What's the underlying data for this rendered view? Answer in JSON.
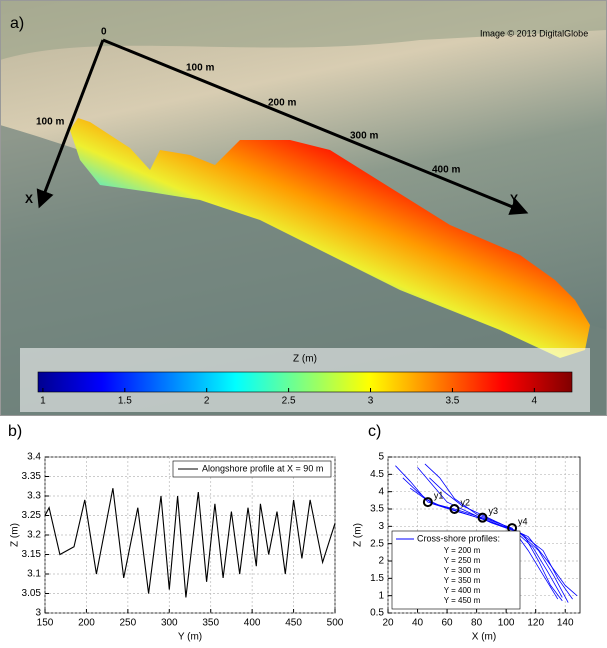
{
  "panel_a": {
    "label": "a)",
    "credit": "Image © 2013 DigitalGlobe",
    "origin": "0",
    "x_axis": "X",
    "y_axis": "Y",
    "x_marks": [
      "100 m"
    ],
    "y_marks": [
      "100 m",
      "200 m",
      "300 m",
      "400 m"
    ],
    "colorbar": {
      "title": "Z (m)",
      "lim": [
        0.97,
        4.23
      ],
      "ticks": [
        1,
        1.5,
        2,
        2.5,
        3,
        3.5,
        4
      ]
    }
  },
  "chart_data": [
    {
      "type": "line",
      "label": "b)",
      "x_label": "Y (m)",
      "y_label": "Z (m)",
      "x": [
        150,
        155,
        168,
        185,
        198,
        212,
        232,
        245,
        262,
        275,
        290,
        300,
        310,
        320,
        335,
        345,
        355,
        365,
        375,
        385,
        395,
        405,
        410,
        420,
        430,
        440,
        450,
        460,
        470,
        485,
        500
      ],
      "series": [
        {
          "name": "Alongshore profile at X = 90 m",
          "color": "#000000",
          "values": [
            3.25,
            3.27,
            3.15,
            3.17,
            3.29,
            3.1,
            3.32,
            3.09,
            3.27,
            3.05,
            3.3,
            3.06,
            3.3,
            3.04,
            3.31,
            3.08,
            3.28,
            3.09,
            3.26,
            3.1,
            3.27,
            3.12,
            3.28,
            3.15,
            3.26,
            3.1,
            3.29,
            3.14,
            3.29,
            3.13,
            3.23
          ]
        }
      ],
      "xlim": [
        150,
        500
      ],
      "xticks": [
        150,
        200,
        250,
        300,
        350,
        400,
        450,
        500
      ],
      "ylim": [
        3,
        3.4
      ],
      "yticks": [
        3,
        3.05,
        3.1,
        3.15,
        3.2,
        3.25,
        3.3,
        3.35,
        3.4
      ],
      "grid": true,
      "legend": "upper-right"
    },
    {
      "type": "line",
      "label": "c)",
      "x_label": "X (m)",
      "y_label": "Z (m)",
      "legend_title": "Cross-shore profiles:",
      "series": [
        {
          "name": "Y = 200 m",
          "color": "#0000ff",
          "x": [
            25,
            35,
            47,
            65,
            84,
            104,
            115,
            125,
            135
          ],
          "values": [
            4.75,
            4.3,
            3.7,
            3.5,
            3.25,
            2.95,
            2.3,
            1.6,
            0.9
          ]
        },
        {
          "name": "Y = 250 m",
          "color": "#0000ff",
          "x": [
            30,
            40,
            50,
            65,
            85,
            105,
            118,
            128,
            138
          ],
          "values": [
            4.4,
            4.0,
            3.65,
            3.45,
            3.2,
            2.9,
            2.4,
            1.7,
            0.95
          ]
        },
        {
          "name": "Y = 300 m",
          "color": "#0000ff",
          "x": [
            35,
            45,
            55,
            70,
            88,
            108,
            122,
            132,
            142
          ],
          "values": [
            4.1,
            3.8,
            3.6,
            3.4,
            3.15,
            2.85,
            2.3,
            1.6,
            0.8
          ]
        },
        {
          "name": "Y = 350 m",
          "color": "#0000ff",
          "x": [
            40,
            50,
            60,
            75,
            90,
            110,
            125,
            135,
            145
          ],
          "values": [
            4.7,
            4.2,
            3.7,
            3.4,
            3.1,
            2.8,
            2.3,
            1.5,
            0.9
          ]
        },
        {
          "name": "Y = 400 m",
          "color": "#0000ff",
          "x": [
            45,
            55,
            65,
            80,
            95,
            112,
            122,
            130,
            138
          ],
          "values": [
            4.8,
            4.4,
            3.8,
            3.35,
            3.1,
            2.75,
            2.0,
            1.3,
            0.85
          ]
        },
        {
          "name": "Y = 450 m",
          "color": "#0000ff",
          "x": [
            48,
            58,
            70,
            85,
            100,
            115,
            128,
            140,
            148
          ],
          "values": [
            4.4,
            4.0,
            3.6,
            3.3,
            3.0,
            2.7,
            2.0,
            1.3,
            1.0
          ]
        }
      ],
      "markers": {
        "labels": [
          "y1",
          "y2",
          "y3",
          "y4"
        ],
        "x": [
          47,
          65,
          84,
          104
        ],
        "values": [
          3.7,
          3.5,
          3.25,
          2.95
        ]
      },
      "xlim": [
        20,
        150
      ],
      "xticks": [
        20,
        40,
        60,
        80,
        100,
        120,
        140
      ],
      "ylim": [
        0.5,
        5
      ],
      "yticks": [
        0.5,
        1,
        1.5,
        2,
        2.5,
        3,
        3.5,
        4,
        4.5,
        5
      ],
      "grid": true,
      "legend": "lower-left"
    }
  ]
}
